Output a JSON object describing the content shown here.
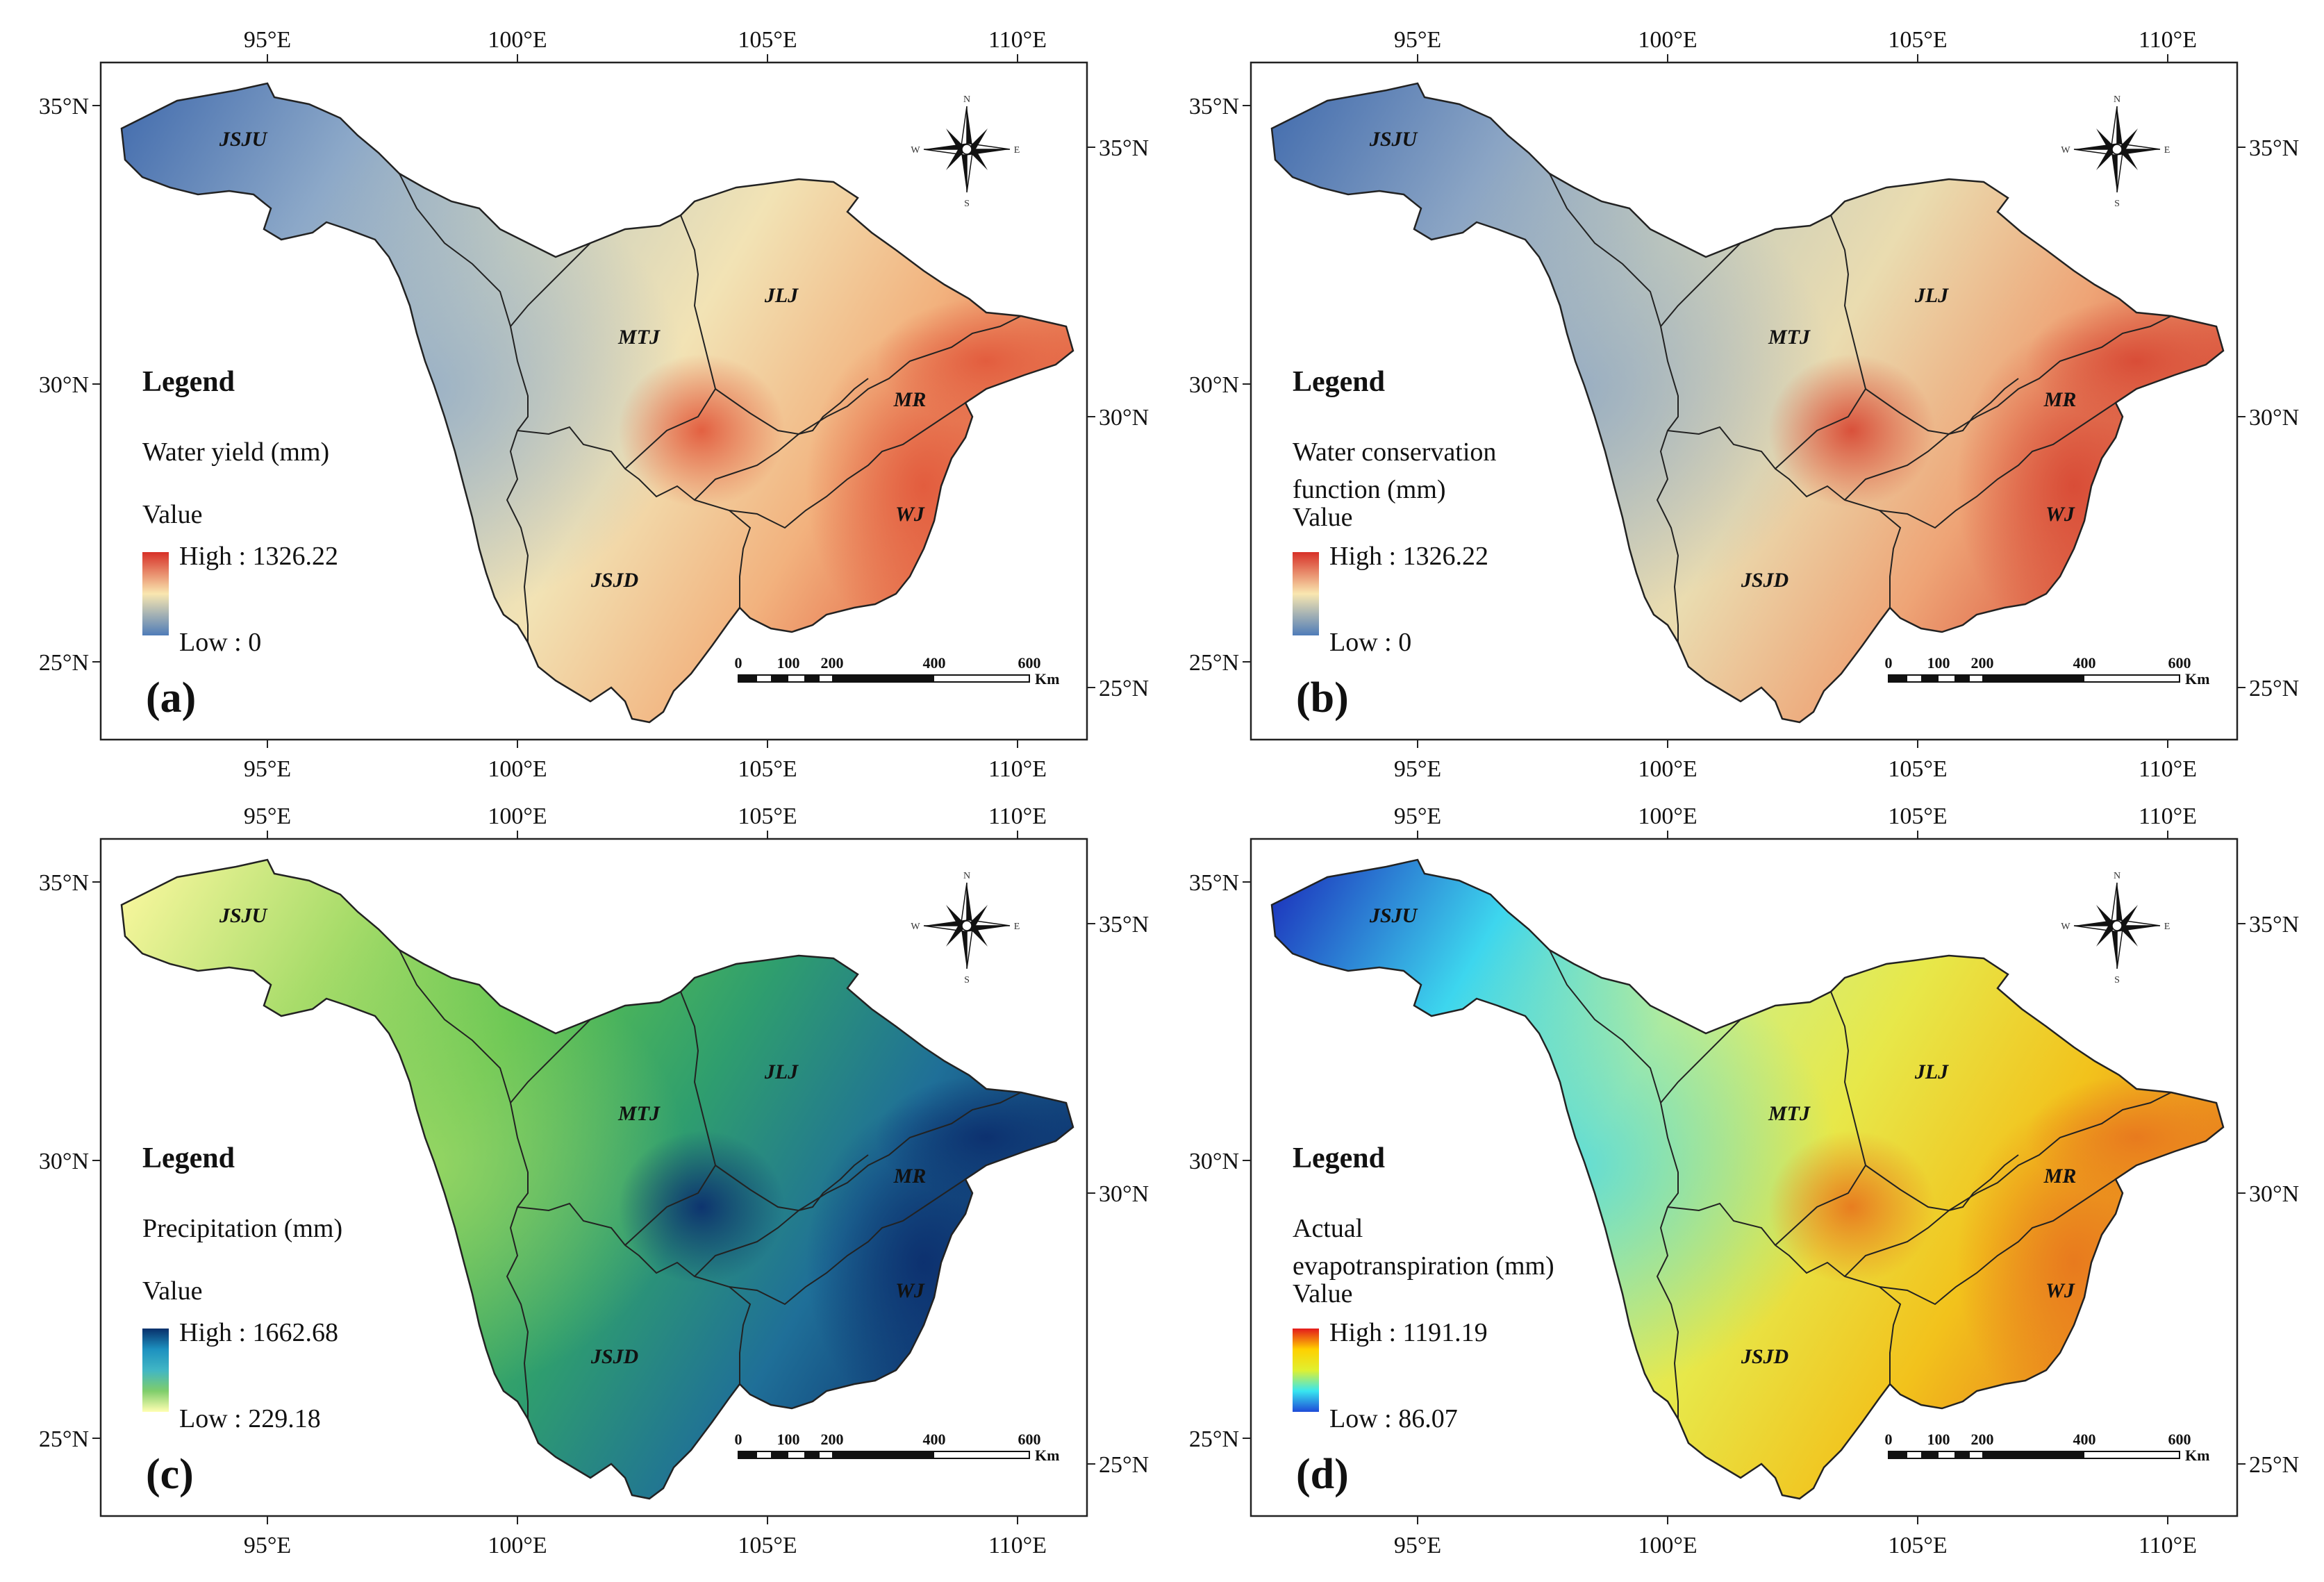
{
  "axes": {
    "lon_ticks": [
      "95°E",
      "100°E",
      "105°E",
      "110°E"
    ],
    "lat_left": [
      "35°N",
      "30°N",
      "25°N"
    ],
    "lat_right": [
      "35°N",
      "30°N",
      "25°N"
    ]
  },
  "subbasins": [
    "JSJU",
    "MTJ",
    "JLJ",
    "MR",
    "WJ",
    "JSJD"
  ],
  "compass": {
    "n": "N",
    "s": "S",
    "e": "E",
    "w": "W"
  },
  "scalebar": {
    "labels": [
      "0",
      "100",
      "200",
      "400",
      "600"
    ],
    "unit": "Km"
  },
  "legend": {
    "title": "Legend",
    "value_label": "Value"
  },
  "panels": [
    {
      "label": "(a)",
      "variable": [
        "Water yield (mm)"
      ],
      "high": "High : 1326.22",
      "low": "Low : 0",
      "ramp": [
        "#d73027",
        "#f9e7b0",
        "#4f7cb8"
      ],
      "land": [
        "#4a72b0",
        "#8ca8c8",
        "#c9cfbf",
        "#f2e3b5",
        "#f2b27e",
        "#e25a3c"
      ]
    },
    {
      "label": "(b)",
      "variable": [
        "Water conservation",
        "function (mm)"
      ],
      "high": "High : 1326.22",
      "low": "Low : 0",
      "ramp": [
        "#d73027",
        "#f9e7b0",
        "#4f7cb8"
      ],
      "land": [
        "#4a72b0",
        "#8aa4c4",
        "#c6ccbc",
        "#eadcb0",
        "#eea476",
        "#d84a35"
      ]
    },
    {
      "label": "(c)",
      "variable": [
        "Precipitation (mm)"
      ],
      "high": "High : 1662.68",
      "low": "Low : 229.18",
      "ramp": [
        "#08306b",
        "#1d91c0",
        "#41b6c4",
        "#7fcd6b",
        "#ffffb2"
      ],
      "land": [
        "#f3f59a",
        "#a8dc6a",
        "#5cc24f",
        "#2f9e6e",
        "#1f6f98",
        "#0c2f6e"
      ]
    },
    {
      "label": "(d)",
      "variable": [
        "Actual",
        "evapotranspiration (mm)"
      ],
      "high": "High : 1191.19",
      "low": "Low : 86.07",
      "ramp": [
        "#e31a1c",
        "#ffd000",
        "#e0f030",
        "#38e6f0",
        "#1e4bd8"
      ],
      "land": [
        "#1f3fc0",
        "#3dd6ee",
        "#cdf08a",
        "#e7e84a",
        "#f2c21c",
        "#e8781e"
      ]
    }
  ]
}
